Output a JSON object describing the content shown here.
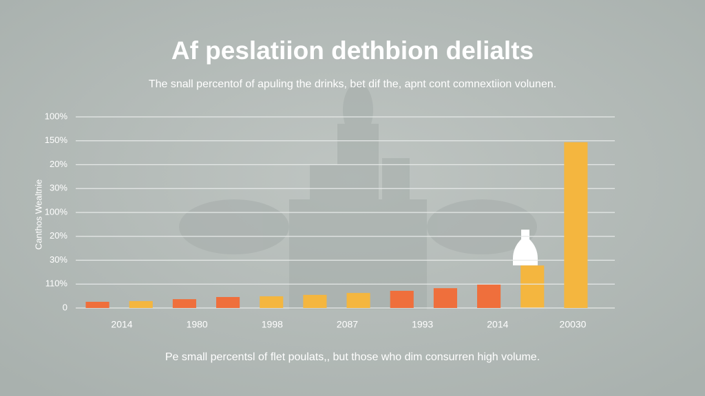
{
  "chart_data": {
    "type": "bar",
    "title": "Af peslatiion dethbion delialts",
    "subtitle": "The snall percentof of apuling the drinks, bet dif the, apnt cont comnextiion volunen.",
    "footer": "Pe small percentsl of flet poulats,, but those who dim consurren high volume.",
    "y_label": "Canthos Wealtnie",
    "categories": [
      null,
      null,
      null,
      null,
      null,
      null,
      null,
      null,
      null,
      null,
      null,
      null
    ],
    "x_axis_labels": [
      "2014",
      "1980",
      "1998",
      "2087",
      "1993",
      "2014",
      "20030"
    ],
    "values": [
      0.26,
      0.29,
      0.37,
      0.46,
      0.49,
      0.55,
      0.63,
      0.72,
      0.83,
      0.98,
      1.78,
      6.94
    ],
    "colors": [
      "#ef6f3c",
      "#f4b63f",
      "#ef6f3c",
      "#ef6f3c",
      "#f4b63f",
      "#f4b63f",
      "#f4b63f",
      "#ef6f3c",
      "#ef6f3c",
      "#ef6f3c",
      "#f4b63f",
      "#f4b63f"
    ],
    "ylim": [
      0,
      8
    ],
    "yticks": [
      0,
      {
        "value": 1,
        "label": "110%"
      },
      {
        "value": 2,
        "label": "30%"
      },
      {
        "value": 3,
        "label": "20%"
      },
      {
        "value": 4,
        "label": "100%"
      },
      {
        "value": 5,
        "label": "30%"
      },
      {
        "value": 6,
        "label": "20%"
      },
      {
        "value": 7,
        "label": "150%"
      },
      {
        "value": 8,
        "label": "100%"
      }
    ],
    "grid": true
  }
}
